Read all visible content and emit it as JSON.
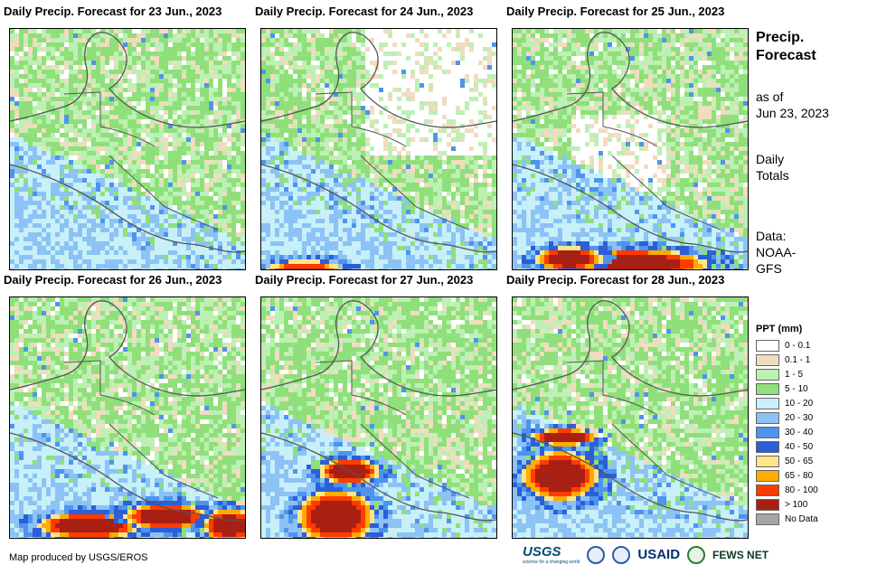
{
  "panels": [
    {
      "title": "Daily Precip. Forecast for 23 Jun., 2023"
    },
    {
      "title": "Daily Precip. Forecast for 24 Jun., 2023"
    },
    {
      "title": "Daily Precip. Forecast for 25 Jun., 2023"
    },
    {
      "title": "Daily Precip. Forecast for 26 Jun., 2023"
    },
    {
      "title": "Daily Precip. Forecast for 27 Jun., 2023"
    },
    {
      "title": "Daily Precip. Forecast for 28 Jun., 2023"
    }
  ],
  "side": {
    "title_line1": "Precip.",
    "title_line2": "Forecast",
    "asof_line1": "as of",
    "asof_line2": "Jun 23, 2023",
    "totals_line1": "Daily",
    "totals_line2": "Totals",
    "data_line1": "Data:",
    "data_line2": "NOAA-",
    "data_line3": "GFS"
  },
  "legend": {
    "title": "PPT (mm)",
    "items": [
      {
        "label": "0 - 0.1",
        "color": "#ffffff"
      },
      {
        "label": "0.1 - 1",
        "color": "#f0dcbe"
      },
      {
        "label": "1 - 5",
        "color": "#bdf0b4"
      },
      {
        "label": "5 - 10",
        "color": "#8fe07a"
      },
      {
        "label": "10 - 20",
        "color": "#c7f0f8"
      },
      {
        "label": "20 - 30",
        "color": "#8cc2f5"
      },
      {
        "label": "30 - 40",
        "color": "#4f94ec"
      },
      {
        "label": "40 - 50",
        "color": "#2a5fd8"
      },
      {
        "label": "50 - 65",
        "color": "#ffe58a"
      },
      {
        "label": "65 - 80",
        "color": "#ffab00"
      },
      {
        "label": "80 - 100",
        "color": "#ff3b00"
      },
      {
        "label": "> 100",
        "color": "#a82014"
      },
      {
        "label": "No Data",
        "color": "#a6a6a6"
      }
    ]
  },
  "credit": "Map produced by USGS/EROS",
  "logos": {
    "usgs": "USGS",
    "usgs_tagline": "science for a changing world",
    "usaid": "USAID",
    "fews": "FEWS NET"
  }
}
